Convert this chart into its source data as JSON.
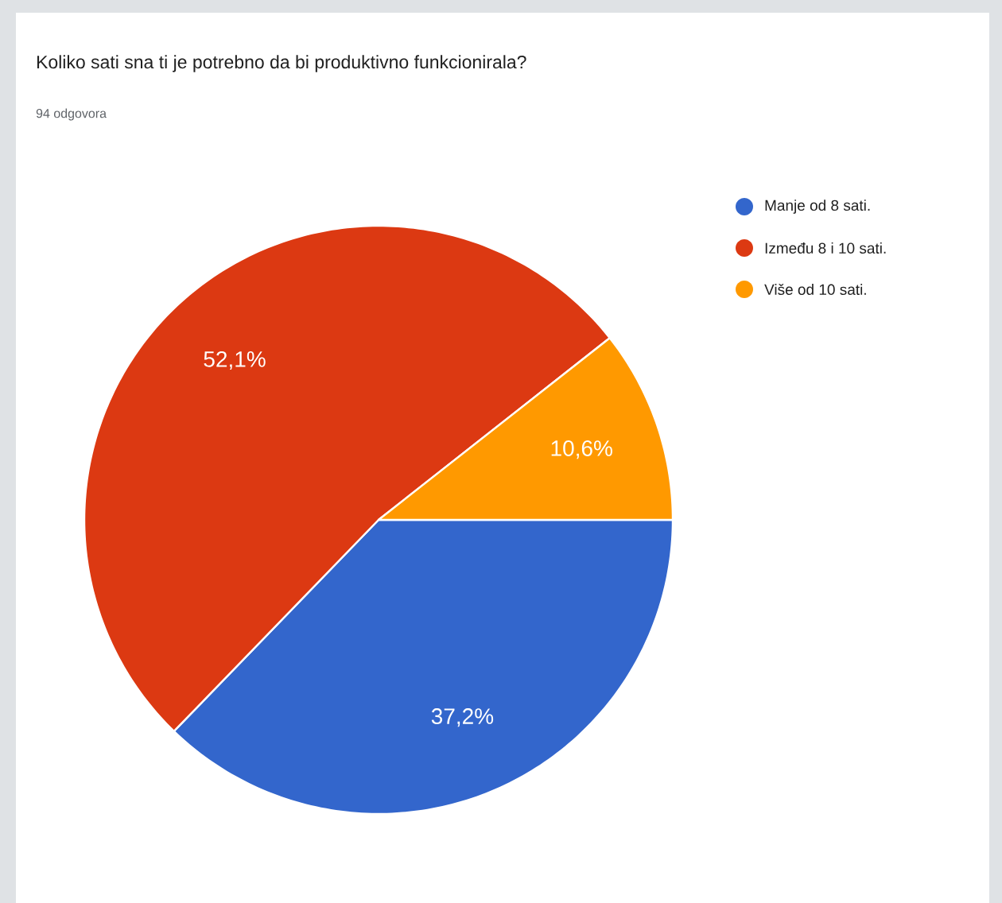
{
  "chart_data": {
    "type": "pie",
    "title": "Koliko sati sna ti je potrebno da bi produktivno funkcionirala?",
    "subtitle": "94 odgovora",
    "categories": [
      "Manje od 8 sati.",
      "Između 8 i 10 sati.",
      "Više od 10 sati."
    ],
    "values": [
      37.2,
      52.1,
      10.6
    ],
    "colors": [
      "#3366cc",
      "#dc3912",
      "#ff9900"
    ],
    "value_labels": [
      "37,2%",
      "52,1%",
      "10,6%"
    ],
    "legend": "top right"
  }
}
